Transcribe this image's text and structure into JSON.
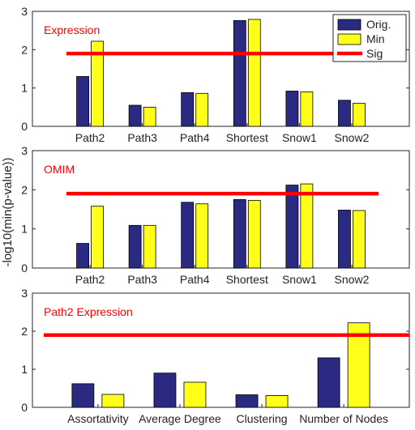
{
  "figure": {
    "shared_ylabel": "-log10(min(p-value))"
  },
  "chart_data": [
    {
      "type": "bar",
      "title": "Expression",
      "categories": [
        "Path2",
        "Path3",
        "Path4",
        "Shortest",
        "Snow1",
        "Snow2"
      ],
      "series": [
        {
          "name": "Orig.",
          "values": [
            1.3,
            0.55,
            0.88,
            2.76,
            0.92,
            0.68
          ]
        },
        {
          "name": "Min",
          "values": [
            2.22,
            0.5,
            0.86,
            2.79,
            0.9,
            0.6
          ]
        }
      ],
      "reference_line": {
        "name": "Sig",
        "value": 1.9
      },
      "ylim": [
        0,
        3
      ],
      "yticks": [
        0,
        1,
        2,
        3
      ],
      "legend": "top-right",
      "colors": {
        "Orig.": "#2b2a82",
        "Min": "#ffff1a",
        "Sig": "#ff0000"
      }
    },
    {
      "type": "bar",
      "title": "OMIM",
      "categories": [
        "Path2",
        "Path3",
        "Path4",
        "Shortest",
        "Snow1",
        "Snow2"
      ],
      "series": [
        {
          "name": "Orig.",
          "values": [
            0.63,
            1.09,
            1.68,
            1.75,
            2.12,
            1.48
          ]
        },
        {
          "name": "Min",
          "values": [
            1.58,
            1.09,
            1.64,
            1.73,
            2.15,
            1.47
          ]
        }
      ],
      "reference_line": {
        "name": "Sig",
        "value": 1.9
      },
      "ylim": [
        0,
        3
      ],
      "yticks": [
        0,
        1,
        2,
        3
      ],
      "colors": {
        "Orig.": "#2b2a82",
        "Min": "#ffff1a",
        "Sig": "#ff0000"
      }
    },
    {
      "type": "bar",
      "title": "Path2 Expression",
      "categories": [
        "Assortativity",
        "Average Degree",
        "Clustering",
        "Number of Nodes"
      ],
      "series": [
        {
          "name": "Orig.",
          "values": [
            0.62,
            0.9,
            0.33,
            1.3
          ]
        },
        {
          "name": "Min",
          "values": [
            0.34,
            0.66,
            0.31,
            2.22
          ]
        }
      ],
      "reference_line": {
        "name": "Sig",
        "value": 1.9
      },
      "ylim": [
        0,
        3
      ],
      "yticks": [
        0,
        1,
        2,
        3
      ],
      "colors": {
        "Orig.": "#2b2a82",
        "Min": "#ffff1a",
        "Sig": "#ff0000"
      }
    }
  ]
}
